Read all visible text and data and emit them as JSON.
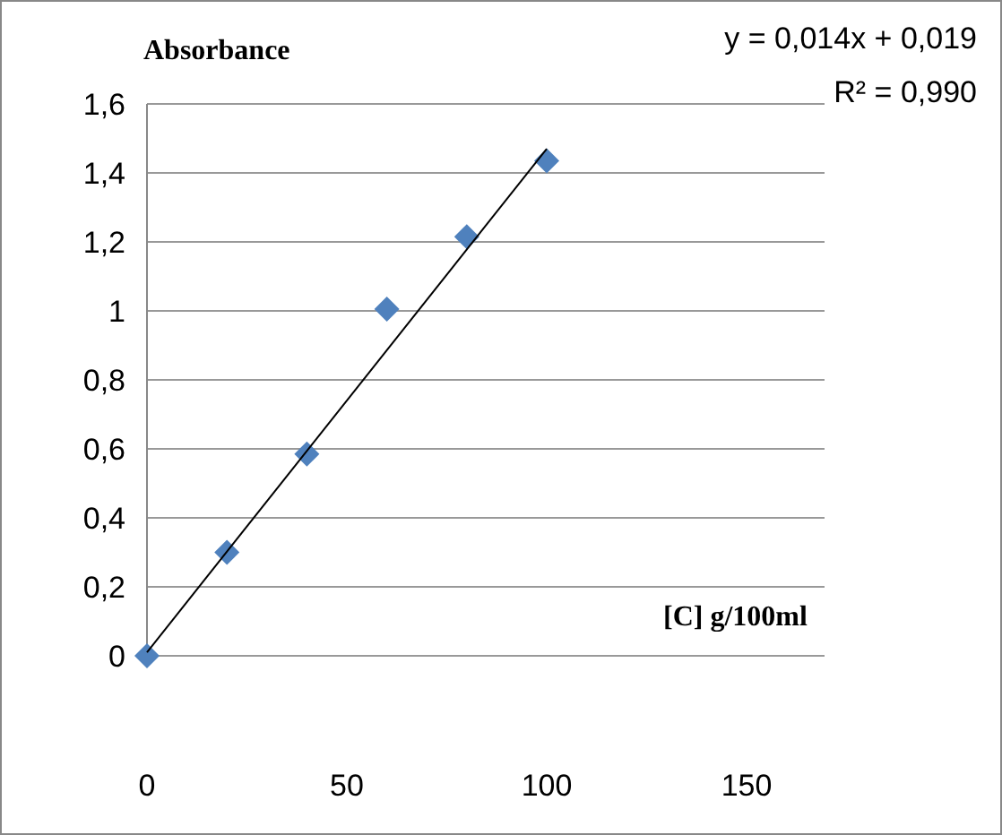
{
  "chart_data": {
    "type": "scatter",
    "ylabel": "Absorbance",
    "xlabel": "[C] g/100ml",
    "annotations": [
      "y = 0,014x + 0,019",
      "R² = 0,990"
    ],
    "series": [
      {
        "color": "#4f81bd",
        "marker": "diamond",
        "x": [
          0,
          20,
          40,
          60,
          80,
          100
        ],
        "values": [
          0,
          0.3,
          0.585,
          1.005,
          1.215,
          1.435
        ]
      },
      {
        "type": "line",
        "color": "#000000",
        "marker": "none",
        "x": [
          0,
          100
        ],
        "values": [
          0.01,
          1.47
        ]
      }
    ],
    "xlim": [
      0,
      150
    ],
    "xticks": [
      0,
      50,
      100,
      150
    ],
    "ylim": [
      0,
      1.6
    ],
    "yticks": [
      {
        "value": 0,
        "label": "0"
      },
      {
        "value": 0.2,
        "label": "0,2"
      },
      {
        "value": 0.4,
        "label": "0,4"
      },
      {
        "value": 0.6,
        "label": "0,6"
      },
      {
        "value": 0.8,
        "label": "0,8"
      },
      {
        "value": 1,
        "label": "1"
      },
      {
        "value": 1.2,
        "label": "1,2"
      },
      {
        "value": 1.4,
        "label": "1,4"
      },
      {
        "value": 1.6,
        "label": "1,6"
      }
    ],
    "grid": "y"
  }
}
